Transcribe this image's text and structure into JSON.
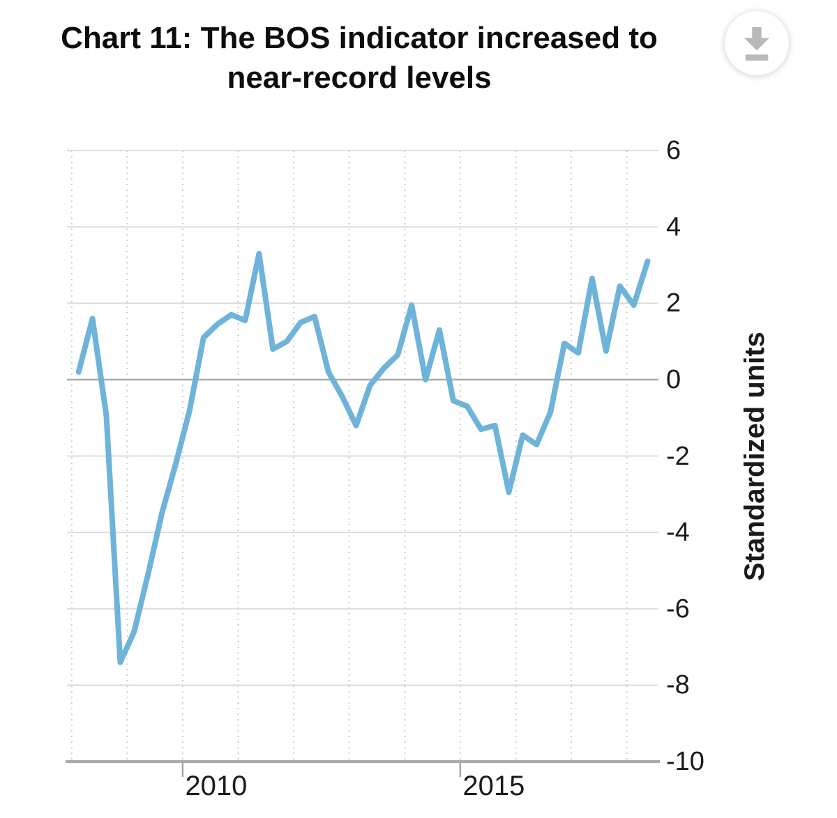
{
  "header": {
    "title": "Chart 11: The BOS indicator increased to near-record levels"
  },
  "toolbar": {
    "download_icon": "download-icon"
  },
  "chart_data": {
    "type": "line",
    "title": "Chart 11: The BOS indicator increased to near-record levels",
    "ylabel": "Standardized units",
    "xlabel": "",
    "ylim": [
      -10,
      6
    ],
    "xlim": [
      2007.915,
      2018.57
    ],
    "yticks": [
      6,
      4,
      2,
      0,
      -2,
      -4,
      -6,
      -8,
      -10
    ],
    "xticks": [
      {
        "value": 2010,
        "label": "2010"
      },
      {
        "value": 2015,
        "label": "2015"
      }
    ],
    "grid": {
      "horizontal_every": 2,
      "vertical_year_lines": [
        2008,
        2009,
        2010,
        2011,
        2012,
        2013,
        2014,
        2015,
        2016,
        2017,
        2018
      ],
      "vertical_style": "dotted",
      "zero_line": true
    },
    "series": [
      {
        "name": "BOS indicator",
        "frequency": "quarterly",
        "x": [
          2008.125,
          2008.375,
          2008.625,
          2008.875,
          2009.125,
          2009.375,
          2009.625,
          2009.875,
          2010.125,
          2010.375,
          2010.625,
          2010.875,
          2011.125,
          2011.375,
          2011.625,
          2011.875,
          2012.125,
          2012.375,
          2012.625,
          2012.875,
          2013.125,
          2013.375,
          2013.625,
          2013.875,
          2014.125,
          2014.375,
          2014.625,
          2014.875,
          2015.125,
          2015.375,
          2015.625,
          2015.875,
          2016.125,
          2016.375,
          2016.625,
          2016.875,
          2017.125,
          2017.375,
          2017.625,
          2017.875,
          2018.125,
          2018.375
        ],
        "values": [
          0.2,
          1.6,
          -0.95,
          -7.4,
          -6.6,
          -5.1,
          -3.5,
          -2.2,
          -0.8,
          1.1,
          1.45,
          1.7,
          1.55,
          3.3,
          0.8,
          1.0,
          1.5,
          1.65,
          0.2,
          -0.45,
          -1.2,
          -0.15,
          0.3,
          0.65,
          1.95,
          0.0,
          1.3,
          -0.55,
          -0.7,
          -1.3,
          -1.2,
          -2.95,
          -1.45,
          -1.7,
          -0.85,
          0.95,
          0.7,
          2.65,
          0.75,
          2.45,
          1.95,
          3.1
        ]
      }
    ],
    "colors": {
      "line": "#6eb3d9",
      "grid": "#dcdcdc",
      "grid_dotted": "#cccccc",
      "zero_line": "#aaaaaa",
      "axis": "#ababab",
      "tick": "#a5a5a5",
      "tick_label": "#1a1a1a",
      "title": "#0d0d0d",
      "download_icon": "#b9b9b9"
    }
  }
}
